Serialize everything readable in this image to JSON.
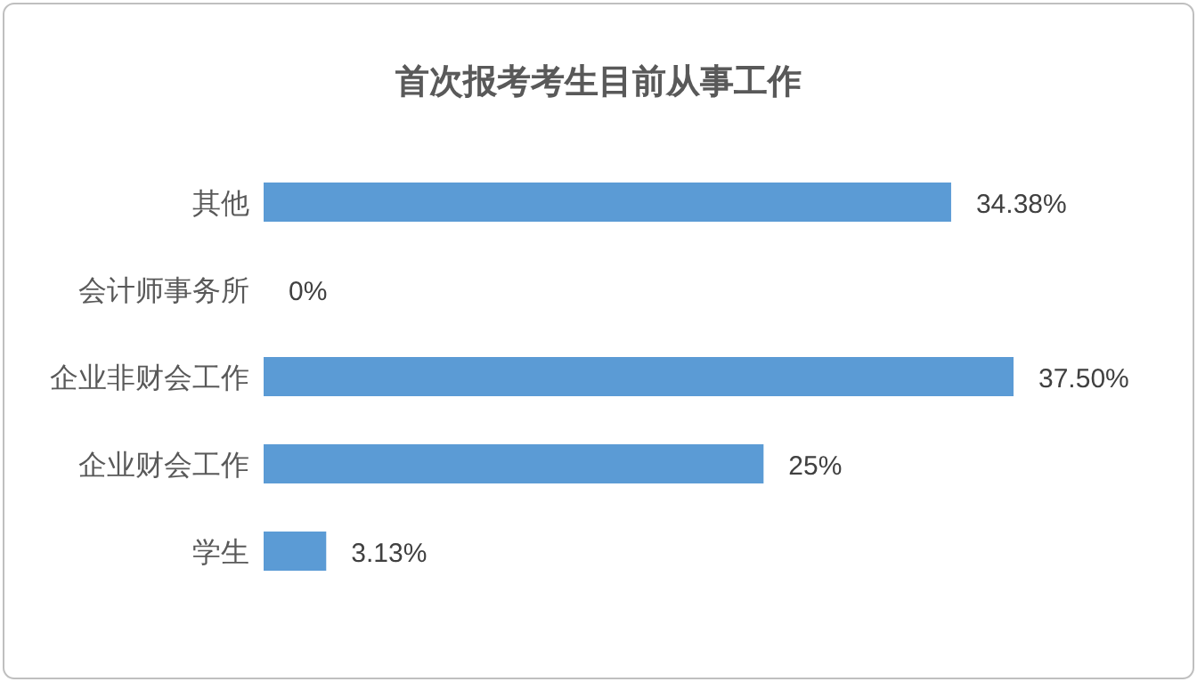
{
  "chart_data": {
    "type": "bar",
    "orientation": "horizontal",
    "title": "首次报考考生目前从事工作",
    "categories": [
      "其他",
      "会计师事务所",
      "企业非财会工作",
      "企业财会工作",
      "学生"
    ],
    "values": [
      34.38,
      0,
      37.5,
      25,
      3.13
    ],
    "value_labels": [
      "34.38%",
      "0%",
      "37.50%",
      "25%",
      "3.13%"
    ],
    "color": "#5b9bd5"
  }
}
